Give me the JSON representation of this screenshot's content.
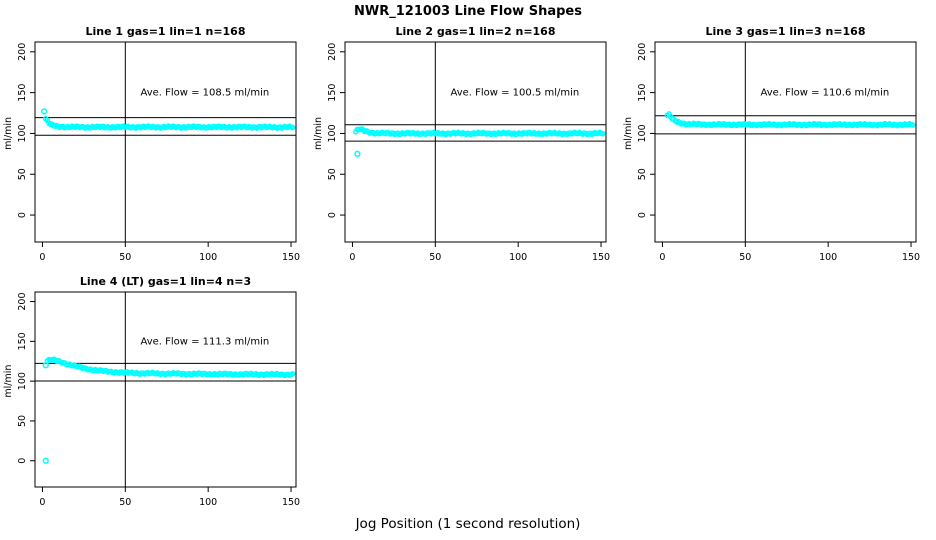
{
  "page_title": "NWR_121003  Line Flow Shapes",
  "x_axis_label": "Jog Position (1 second resolution)",
  "y_axis_label": "ml/min",
  "colors": {
    "marker": "#00FFFF",
    "axis": "#000000",
    "background": "#FFFFFF",
    "text": "#000000"
  },
  "axes": {
    "x_ticks": [
      0,
      50,
      100,
      150
    ],
    "y_ticks": [
      0,
      50,
      100,
      150,
      200
    ],
    "x_range": [
      -4.5,
      153
    ],
    "y_range": [
      -33,
      212
    ],
    "grid": false
  },
  "chart_data": [
    {
      "type": "scatter",
      "title": "Line 1 gas=1 lin=1 n=168",
      "annotation": "Ave. Flow =  108.5  ml/min",
      "ave_flow": 108.5,
      "ylabel": "ml/min",
      "n_points": 160,
      "hlines": [
        119.4,
        97.7
      ],
      "vline": 50,
      "profile": [
        [
          2,
          118
        ],
        [
          3,
          115
        ],
        [
          4,
          112.5
        ],
        [
          5,
          110.8
        ],
        [
          7,
          109.3
        ],
        [
          10,
          108.4
        ],
        [
          15,
          107.9
        ],
        [
          25,
          107.7
        ],
        [
          60,
          107.8
        ],
        [
          100,
          107.8
        ],
        [
          151,
          107.6
        ]
      ],
      "outliers": [
        [
          1,
          127
        ]
      ]
    },
    {
      "type": "scatter",
      "title": "Line 2 gas=1 lin=2 n=168",
      "annotation": "Ave. Flow =  100.5  ml/min",
      "ave_flow": 100.5,
      "ylabel": "ml/min",
      "n_points": 160,
      "hlines": [
        110.6,
        90.5
      ],
      "vline": 50,
      "profile": [
        [
          2,
          102
        ],
        [
          3,
          104
        ],
        [
          4,
          105.3
        ],
        [
          5,
          105
        ],
        [
          6,
          104
        ],
        [
          8,
          102.5
        ],
        [
          11,
          101.2
        ],
        [
          15,
          100.4
        ],
        [
          22,
          100
        ],
        [
          50,
          100
        ],
        [
          151,
          100
        ]
      ],
      "outliers": [
        [
          3,
          75
        ]
      ]
    },
    {
      "type": "scatter",
      "title": "Line 3 gas=1 lin=3 n=168",
      "annotation": "Ave. Flow =  110.6  ml/min",
      "ave_flow": 110.6,
      "ylabel": "ml/min",
      "n_points": 160,
      "hlines": [
        121.7,
        99.5
      ],
      "vline": 50,
      "profile": [
        [
          3,
          122
        ],
        [
          4,
          123
        ],
        [
          5,
          120.5
        ],
        [
          6,
          117.5
        ],
        [
          8,
          114.8
        ],
        [
          11,
          112.8
        ],
        [
          15,
          111.6
        ],
        [
          22,
          111
        ],
        [
          40,
          110.8
        ],
        [
          151,
          110.7
        ]
      ],
      "outliers": []
    },
    {
      "type": "scatter",
      "title": "Line 4 (LT) gas=1 lin=4 n=3",
      "annotation": "Ave. Flow =  111.3  ml/min",
      "ave_flow": 111.3,
      "ylabel": "ml/min",
      "n_points": 155,
      "hlines": [
        122.4,
        100.2
      ],
      "vline": 50,
      "profile": [
        [
          3,
          125.5
        ],
        [
          5,
          126.8
        ],
        [
          7,
          126.3
        ],
        [
          10,
          124.8
        ],
        [
          14,
          122.3
        ],
        [
          18,
          119.8
        ],
        [
          24,
          116.8
        ],
        [
          30,
          114.3
        ],
        [
          38,
          112.3
        ],
        [
          48,
          110.8
        ],
        [
          62,
          109.8
        ],
        [
          85,
          109.2
        ],
        [
          115,
          108.7
        ],
        [
          151,
          108.3
        ]
      ],
      "outliers": [
        [
          2,
          0
        ],
        [
          2,
          120
        ]
      ]
    }
  ]
}
